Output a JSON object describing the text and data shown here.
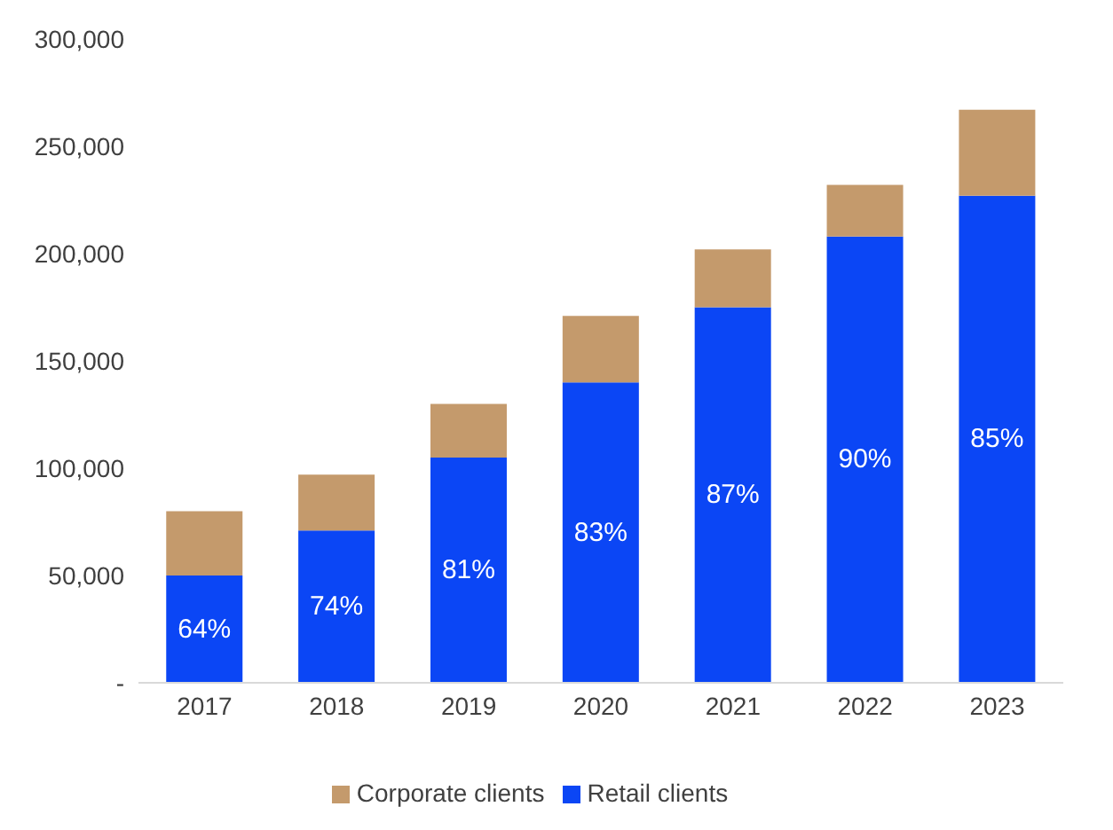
{
  "chart_data": {
    "type": "bar",
    "stacked": true,
    "categories": [
      "2017",
      "2018",
      "2019",
      "2020",
      "2021",
      "2022",
      "2023"
    ],
    "series": [
      {
        "name": "Retail clients",
        "color": "#0b46f5",
        "values": [
          50000,
          71000,
          105000,
          140000,
          175000,
          208000,
          227000
        ]
      },
      {
        "name": "Corporate clients",
        "color": "#c49a6c",
        "values": [
          30000,
          26000,
          25000,
          31000,
          27000,
          24000,
          40000
        ]
      }
    ],
    "annotations": [
      "64%",
      "74%",
      "81%",
      "83%",
      "87%",
      "90%",
      "85%"
    ],
    "ylim": [
      0,
      300000
    ],
    "yticks": [
      {
        "value": 0,
        "label": "-"
      },
      {
        "value": 50000,
        "label": "50,000"
      },
      {
        "value": 100000,
        "label": "100,000"
      },
      {
        "value": 150000,
        "label": "150,000"
      },
      {
        "value": 200000,
        "label": "200,000"
      },
      {
        "value": 250000,
        "label": "250,000"
      },
      {
        "value": 300000,
        "label": "300,000"
      }
    ],
    "grid": false,
    "legend": "bottom"
  }
}
